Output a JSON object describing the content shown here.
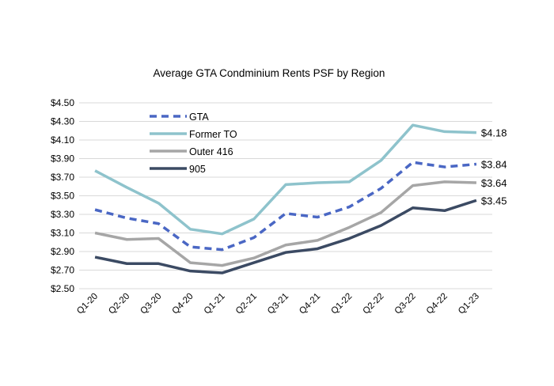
{
  "chart_data": {
    "type": "line",
    "title": "Average GTA Condminium Rents PSF by Region",
    "xlabel": "",
    "ylabel": "",
    "ylim": [
      2.5,
      4.5
    ],
    "ytick_step": 0.2,
    "ytick_labels": [
      "$2.50",
      "$2.70",
      "$2.90",
      "$3.10",
      "$3.30",
      "$3.50",
      "$3.70",
      "$3.90",
      "$4.10",
      "$4.30",
      "$4.50"
    ],
    "grid": true,
    "legend_placement": "top-left",
    "categories": [
      "Q1-20",
      "Q2-20",
      "Q3-20",
      "Q4-20",
      "Q1-21",
      "Q2-21",
      "Q3-21",
      "Q4-21",
      "Q1-22",
      "Q2-22",
      "Q3-22",
      "Q4-22",
      "Q1-23"
    ],
    "series": [
      {
        "name": "GTA",
        "color": "#4A67C4",
        "dashed": true,
        "values": [
          3.35,
          3.26,
          3.2,
          2.95,
          2.92,
          3.05,
          3.31,
          3.27,
          3.38,
          3.58,
          3.86,
          3.81,
          3.84
        ],
        "end_label": "$3.84"
      },
      {
        "name": "Former TO",
        "color": "#8EC3CC",
        "dashed": false,
        "values": [
          3.77,
          3.59,
          3.42,
          3.14,
          3.09,
          3.25,
          3.62,
          3.64,
          3.65,
          3.88,
          4.26,
          4.19,
          4.18
        ],
        "end_label": "$4.18"
      },
      {
        "name": "Outer 416",
        "color": "#A6A6A6",
        "dashed": false,
        "values": [
          3.1,
          3.03,
          3.04,
          2.78,
          2.75,
          2.83,
          2.97,
          3.02,
          3.16,
          3.32,
          3.61,
          3.65,
          3.64
        ],
        "end_label": "$3.64"
      },
      {
        "name": "905",
        "color": "#3B4A63",
        "dashed": false,
        "values": [
          2.84,
          2.77,
          2.77,
          2.69,
          2.67,
          2.78,
          2.89,
          2.93,
          3.04,
          3.18,
          3.37,
          3.34,
          3.45
        ],
        "end_label": "$3.45"
      }
    ]
  }
}
